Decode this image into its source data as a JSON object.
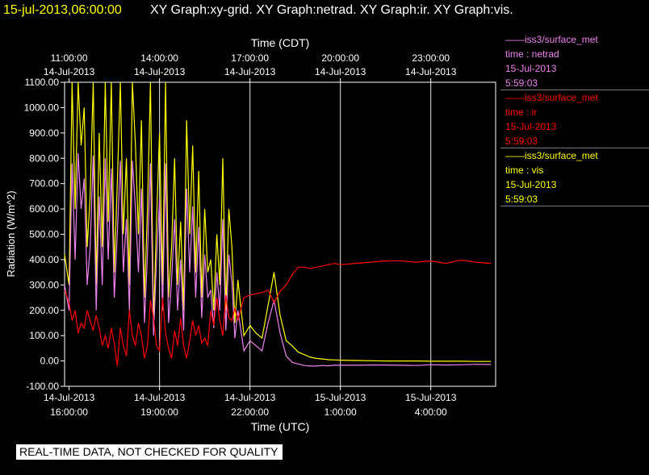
{
  "header": {
    "date": "15-jul-2013,06:00:00",
    "graphs": "XY Graph:xy-grid.  XY Graph:netrad.  XY Graph:ir.  XY Graph:vis."
  },
  "legend": [
    {
      "line1": "——iss3/surface_met",
      "line2": "time : netrad",
      "line3": "15-Jul-2013",
      "line4": "5:59:03",
      "color": "#ee82ee"
    },
    {
      "line1": "——iss3/surface_met",
      "line2": "time : ir",
      "line3": "15-Jul-2013",
      "line4": "5:59:03",
      "color": "#ff0000"
    },
    {
      "line1": "——iss3/surface_met",
      "line2": "time : vis",
      "line3": "15-Jul-2013",
      "line4": "5:59:03",
      "color": "#ffff00"
    }
  ],
  "banner": "REAL-TIME DATA, NOT CHECKED FOR QUALITY",
  "chart_data": {
    "type": "line",
    "ylabel": "Radiation (W/m^2)",
    "xlabel_bottom": "Time (UTC)",
    "xlabel_top": "Time (CDT)",
    "ylim": [
      -100,
      1100
    ],
    "xlim_hours_utc": [
      15.85,
      30.15
    ],
    "grid": true,
    "yticks": [
      "-100.00",
      "0.00",
      "100.00",
      "200.00",
      "300.00",
      "400.00",
      "500.00",
      "600.00",
      "700.00",
      "800.00",
      "900.00",
      "1000.00",
      "1100.00"
    ],
    "xticks_bottom": [
      {
        "date": "14-Jul-2013",
        "time": "16:00:00"
      },
      {
        "date": "14-Jul-2013",
        "time": "19:00:00"
      },
      {
        "date": "14-Jul-2013",
        "time": "22:00:00"
      },
      {
        "date": "15-Jul-2013",
        "time": "1:00:00"
      },
      {
        "date": "15-Jul-2013",
        "time": "4:00:00"
      }
    ],
    "xticks_top": [
      {
        "time": "11:00:00",
        "date": "14-Jul-2013"
      },
      {
        "time": "14:00:00",
        "date": "14-Jul-2013"
      },
      {
        "time": "17:00:00",
        "date": "14-Jul-2013"
      },
      {
        "time": "20:00:00",
        "date": "14-Jul-2013"
      },
      {
        "time": "23:00:00",
        "date": "14-Jul-2013"
      }
    ],
    "series": [
      {
        "name": "vis",
        "color": "#ffff00",
        "x": [
          15.85,
          16.0,
          16.1,
          16.2,
          16.3,
          16.4,
          16.5,
          16.6,
          16.7,
          16.8,
          16.9,
          17.0,
          17.1,
          17.2,
          17.3,
          17.4,
          17.5,
          17.6,
          17.7,
          17.8,
          17.9,
          18.0,
          18.1,
          18.2,
          18.3,
          18.4,
          18.5,
          18.6,
          18.7,
          18.8,
          18.9,
          19.0,
          19.1,
          19.2,
          19.3,
          19.4,
          19.5,
          19.6,
          19.7,
          19.8,
          19.9,
          20.0,
          20.1,
          20.2,
          20.3,
          20.4,
          20.5,
          20.6,
          20.7,
          20.8,
          20.9,
          21.0,
          21.1,
          21.2,
          21.3,
          21.4,
          21.5,
          21.6,
          21.8,
          22.0,
          22.2,
          22.4,
          22.6,
          22.8,
          23.0,
          23.2,
          23.4,
          23.6,
          23.8,
          24.0,
          24.2,
          24.4,
          24.6,
          24.8,
          25.0,
          25.5,
          26.0,
          26.5,
          27.0,
          27.5,
          28.0,
          28.5,
          29.0,
          29.5,
          30.0
        ],
        "y": [
          420,
          300,
          1100,
          600,
          1100,
          850,
          1000,
          450,
          650,
          1100,
          300,
          900,
          450,
          1100,
          550,
          1100,
          350,
          700,
          1100,
          500,
          800,
          300,
          1100,
          850,
          500,
          950,
          250,
          600,
          1100,
          150,
          550,
          900,
          300,
          1100,
          250,
          450,
          800,
          300,
          550,
          200,
          950,
          500,
          850,
          350,
          750,
          250,
          600,
          350,
          400,
          200,
          500,
          300,
          800,
          200,
          600,
          450,
          150,
          320,
          100,
          140,
          110,
          90,
          220,
          350,
          180,
          80,
          60,
          35,
          25,
          15,
          10,
          8,
          5,
          4,
          3,
          2,
          1,
          0,
          0,
          0,
          -1,
          -1,
          -1,
          -2,
          -2
        ]
      },
      {
        "name": "netrad",
        "color": "#ee82ee",
        "x": [
          15.85,
          16.0,
          16.1,
          16.2,
          16.3,
          16.4,
          16.5,
          16.6,
          16.7,
          16.8,
          16.9,
          17.0,
          17.1,
          17.2,
          17.3,
          17.4,
          17.5,
          17.6,
          17.7,
          17.8,
          17.9,
          18.0,
          18.1,
          18.2,
          18.3,
          18.4,
          18.5,
          18.6,
          18.7,
          18.8,
          18.9,
          19.0,
          19.1,
          19.2,
          19.3,
          19.4,
          19.5,
          19.6,
          19.7,
          19.8,
          19.9,
          20.0,
          20.1,
          20.2,
          20.3,
          20.4,
          20.5,
          20.6,
          20.7,
          20.8,
          20.9,
          21.0,
          21.1,
          21.2,
          21.3,
          21.4,
          21.5,
          21.6,
          21.8,
          22.0,
          22.2,
          22.4,
          22.6,
          22.8,
          23.0,
          23.2,
          23.4,
          23.6,
          23.8,
          24.0,
          24.2,
          24.4,
          24.6,
          24.8,
          25.0,
          25.5,
          26.0,
          26.5,
          27.0,
          27.5,
          28.0,
          28.5,
          29.0,
          29.5,
          30.0
        ],
        "y": [
          300,
          200,
          780,
          400,
          820,
          600,
          720,
          300,
          450,
          810,
          200,
          650,
          300,
          800,
          400,
          760,
          250,
          500,
          790,
          350,
          560,
          200,
          790,
          600,
          350,
          680,
          150,
          420,
          780,
          100,
          400,
          640,
          200,
          780,
          150,
          320,
          560,
          200,
          400,
          120,
          680,
          350,
          610,
          250,
          530,
          170,
          420,
          250,
          280,
          130,
          350,
          200,
          560,
          120,
          420,
          310,
          90,
          200,
          40,
          80,
          60,
          40,
          150,
          240,
          110,
          20,
          -5,
          -12,
          -18,
          -20,
          -20,
          -18,
          -19,
          -17,
          -17,
          -17,
          -16,
          -16,
          -17,
          -18,
          -15,
          -16,
          -15,
          -13,
          -14
        ]
      },
      {
        "name": "ir",
        "color": "#ff0000",
        "x": [
          15.85,
          16.0,
          16.1,
          16.2,
          16.3,
          16.4,
          16.5,
          16.6,
          16.7,
          16.8,
          16.9,
          17.0,
          17.1,
          17.2,
          17.3,
          17.4,
          17.5,
          17.6,
          17.7,
          17.8,
          17.9,
          18.0,
          18.1,
          18.2,
          18.3,
          18.4,
          18.5,
          18.6,
          18.7,
          18.8,
          18.9,
          19.0,
          19.1,
          19.2,
          19.3,
          19.4,
          19.5,
          19.6,
          19.7,
          19.8,
          19.9,
          20.0,
          20.1,
          20.2,
          20.3,
          20.4,
          20.5,
          20.6,
          20.7,
          20.8,
          20.9,
          21.0,
          21.1,
          21.2,
          21.3,
          21.4,
          21.5,
          21.6,
          21.8,
          22.0,
          22.2,
          22.4,
          22.6,
          22.8,
          23.0,
          23.2,
          23.4,
          23.6,
          23.8,
          24.0,
          24.2,
          24.4,
          24.6,
          24.8,
          25.0,
          25.5,
          26.0,
          26.5,
          27.0,
          27.5,
          28.0,
          28.5,
          29.0,
          29.5,
          30.0
        ],
        "y": [
          280,
          230,
          160,
          200,
          110,
          150,
          130,
          200,
          160,
          120,
          180,
          130,
          60,
          100,
          50,
          130,
          70,
          -20,
          130,
          60,
          20,
          200,
          100,
          60,
          150,
          100,
          10,
          60,
          240,
          170,
          60,
          40,
          250,
          110,
          50,
          10,
          120,
          60,
          170,
          60,
          10,
          80,
          160,
          100,
          140,
          70,
          90,
          60,
          200,
          140,
          250,
          160,
          100,
          260,
          170,
          160,
          210,
          160,
          250,
          260,
          265,
          270,
          280,
          230,
          275,
          300,
          340,
          370,
          370,
          365,
          370,
          375,
          380,
          385,
          380,
          385,
          390,
          395,
          395,
          390,
          395,
          385,
          398,
          390,
          385
        ]
      }
    ]
  }
}
